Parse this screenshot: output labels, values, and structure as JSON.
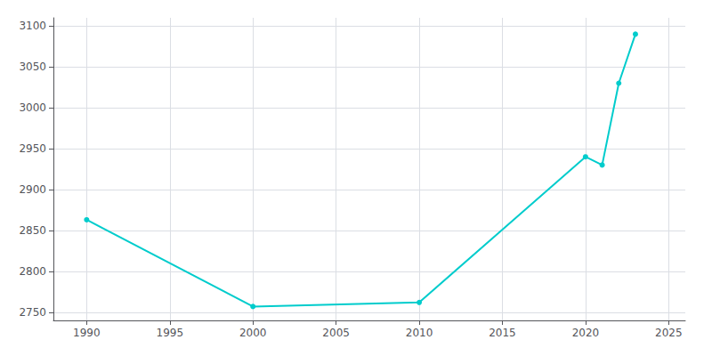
{
  "chart_data": {
    "type": "line",
    "x": [
      1990,
      2000,
      2010,
      2020,
      2021,
      2022,
      2023
    ],
    "values": [
      2863,
      2757,
      2762,
      2940,
      2930,
      3030,
      3090
    ],
    "color": "#00CCCC",
    "marker": "circle",
    "xlim": [
      1988,
      2026
    ],
    "ylim": [
      2740,
      3110
    ],
    "xticks": [
      1990,
      1995,
      2000,
      2005,
      2010,
      2015,
      2020,
      2025
    ],
    "yticks": [
      2750,
      2800,
      2850,
      2900,
      2950,
      3000,
      3050,
      3100
    ],
    "grid": true
  }
}
